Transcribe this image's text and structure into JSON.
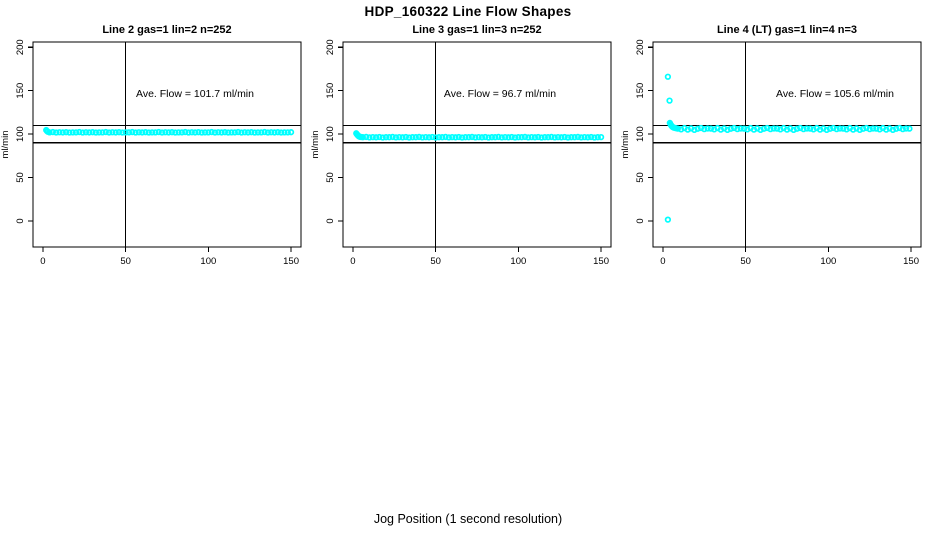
{
  "page_title": "HDP_160322  Line Flow Shapes",
  "bottom_caption": "Jog Position (1 second resolution)",
  "marker_color": "#00FFFF",
  "axis_color": "#000000",
  "chart_data": [
    {
      "type": "scatter",
      "title": "Line 2 gas=1 lin=2 n=252",
      "ylabel": "ml/min",
      "annotation": "Ave. Flow =  101.7  ml/min",
      "ave_flow_ml_min": 101.7,
      "n": 252,
      "x_ticks": [
        0,
        50,
        100,
        150
      ],
      "y_ticks": [
        0,
        50,
        100,
        150,
        200
      ],
      "xlim": [
        -6,
        156
      ],
      "ylim": [
        -30,
        206
      ],
      "ref_hlines": [
        90,
        110
      ],
      "ref_vlines": [
        50
      ],
      "marker": "open-circle",
      "points": [
        [
          2,
          104.6
        ],
        [
          2.5,
          103.4
        ],
        [
          3,
          102.7
        ],
        [
          4,
          102
        ],
        [
          6,
          102.3
        ],
        [
          8,
          101.8
        ],
        [
          10,
          102.1
        ],
        [
          12,
          101.9
        ],
        [
          14,
          102.2
        ],
        [
          16,
          101.8
        ],
        [
          18,
          102
        ],
        [
          20,
          102
        ],
        [
          22,
          102.3
        ],
        [
          24,
          101.8
        ],
        [
          26,
          102.1
        ],
        [
          28,
          101.9
        ],
        [
          30,
          102.2
        ],
        [
          32,
          101.8
        ],
        [
          34,
          102
        ],
        [
          36,
          102
        ],
        [
          38,
          102.3
        ],
        [
          40,
          101.8
        ],
        [
          42,
          102.1
        ],
        [
          44,
          101.9
        ],
        [
          46,
          102.2
        ],
        [
          48,
          101.8
        ],
        [
          50,
          102
        ],
        [
          52,
          102
        ],
        [
          54,
          102.3
        ],
        [
          56,
          101.8
        ],
        [
          58,
          102.1
        ],
        [
          60,
          101.9
        ],
        [
          62,
          102.2
        ],
        [
          64,
          101.8
        ],
        [
          66,
          102
        ],
        [
          68,
          102
        ],
        [
          70,
          102.3
        ],
        [
          72,
          101.8
        ],
        [
          74,
          102.1
        ],
        [
          76,
          101.9
        ],
        [
          78,
          102.2
        ],
        [
          80,
          101.8
        ],
        [
          82,
          102
        ],
        [
          84,
          102
        ],
        [
          86,
          102.3
        ],
        [
          88,
          101.8
        ],
        [
          90,
          102.1
        ],
        [
          92,
          101.9
        ],
        [
          94,
          102.2
        ],
        [
          96,
          101.8
        ],
        [
          98,
          102
        ],
        [
          100,
          102
        ],
        [
          102,
          102.3
        ],
        [
          104,
          101.8
        ],
        [
          106,
          102.1
        ],
        [
          108,
          101.9
        ],
        [
          110,
          102.2
        ],
        [
          112,
          101.8
        ],
        [
          114,
          102
        ],
        [
          116,
          102
        ],
        [
          118,
          102.3
        ],
        [
          120,
          101.8
        ],
        [
          122,
          102.1
        ],
        [
          124,
          101.9
        ],
        [
          126,
          102.2
        ],
        [
          128,
          101.8
        ],
        [
          130,
          102
        ],
        [
          132,
          102
        ],
        [
          134,
          102.3
        ],
        [
          136,
          101.8
        ],
        [
          138,
          102.1
        ],
        [
          140,
          101.9
        ],
        [
          142,
          102.2
        ],
        [
          144,
          101.8
        ],
        [
          146,
          102
        ],
        [
          148,
          102
        ],
        [
          150,
          102.2
        ]
      ]
    },
    {
      "type": "scatter",
      "title": "Line 3 gas=1 lin=3 n=252",
      "ylabel": "ml/min",
      "annotation": "Ave. Flow =  96.7  ml/min",
      "ave_flow_ml_min": 96.7,
      "n": 252,
      "x_ticks": [
        0,
        50,
        100,
        150
      ],
      "y_ticks": [
        0,
        50,
        100,
        150,
        200
      ],
      "xlim": [
        -6,
        156
      ],
      "ylim": [
        -30,
        206
      ],
      "ref_hlines": [
        90,
        110
      ],
      "ref_vlines": [
        50
      ],
      "marker": "open-circle",
      "points": [
        [
          2,
          100.9
        ],
        [
          2.4,
          99.8
        ],
        [
          2.8,
          98.9
        ],
        [
          3.2,
          98.1
        ],
        [
          3.6,
          97.5
        ],
        [
          4,
          97.1
        ],
        [
          4.5,
          96.8
        ],
        [
          5,
          96.6
        ],
        [
          6,
          96.4
        ],
        [
          8,
          96.7
        ],
        [
          10,
          96.2
        ],
        [
          12,
          96.5
        ],
        [
          14,
          96.3
        ],
        [
          16,
          96.6
        ],
        [
          18,
          96.1
        ],
        [
          20,
          96.4
        ],
        [
          22,
          96.4
        ],
        [
          24,
          96.7
        ],
        [
          26,
          96.2
        ],
        [
          28,
          96.5
        ],
        [
          30,
          96.3
        ],
        [
          32,
          96.6
        ],
        [
          34,
          96.1
        ],
        [
          36,
          96.4
        ],
        [
          38,
          96.4
        ],
        [
          40,
          96.7
        ],
        [
          42,
          96.2
        ],
        [
          44,
          96.5
        ],
        [
          46,
          96.3
        ],
        [
          48,
          96.6
        ],
        [
          50,
          96.1
        ],
        [
          52,
          96.4
        ],
        [
          54,
          96.4
        ],
        [
          56,
          96.7
        ],
        [
          58,
          96.2
        ],
        [
          60,
          96.5
        ],
        [
          62,
          96.3
        ],
        [
          64,
          96.6
        ],
        [
          66,
          96.1
        ],
        [
          68,
          96.4
        ],
        [
          70,
          96.4
        ],
        [
          72,
          96.7
        ],
        [
          74,
          96.2
        ],
        [
          76,
          96.5
        ],
        [
          78,
          96.3
        ],
        [
          80,
          96.6
        ],
        [
          82,
          96.1
        ],
        [
          84,
          96.4
        ],
        [
          86,
          96.4
        ],
        [
          88,
          96.7
        ],
        [
          90,
          96.2
        ],
        [
          92,
          96.5
        ],
        [
          94,
          96.3
        ],
        [
          96,
          96.6
        ],
        [
          98,
          96.1
        ],
        [
          100,
          96.4
        ],
        [
          102,
          96.4
        ],
        [
          104,
          96.7
        ],
        [
          106,
          96.2
        ],
        [
          108,
          96.5
        ],
        [
          110,
          96.3
        ],
        [
          112,
          96.6
        ],
        [
          114,
          96.1
        ],
        [
          116,
          96.4
        ],
        [
          118,
          96.4
        ],
        [
          120,
          96.7
        ],
        [
          122,
          96.2
        ],
        [
          124,
          96.5
        ],
        [
          126,
          96.3
        ],
        [
          128,
          96.6
        ],
        [
          130,
          96.1
        ],
        [
          132,
          96.4
        ],
        [
          134,
          96.4
        ],
        [
          136,
          96.7
        ],
        [
          138,
          96.2
        ],
        [
          140,
          96.5
        ],
        [
          142,
          96.3
        ],
        [
          144,
          96.6
        ],
        [
          146,
          96.1
        ],
        [
          148,
          96.4
        ],
        [
          150,
          96.5
        ]
      ]
    },
    {
      "type": "scatter",
      "title": "Line 4 (LT) gas=1 lin=4 n=3",
      "ylabel": "ml/min",
      "annotation": "Ave. Flow =  105.6  ml/min",
      "ave_flow_ml_min": 105.6,
      "n": 3,
      "x_ticks": [
        0,
        50,
        100,
        150
      ],
      "y_ticks": [
        0,
        50,
        100,
        150,
        200
      ],
      "xlim": [
        -6,
        156
      ],
      "ylim": [
        -30,
        206
      ],
      "ref_hlines": [
        90,
        110
      ],
      "ref_vlines": [
        50
      ],
      "marker": "open-circle",
      "points": [
        [
          3,
          166
        ],
        [
          3,
          1.5
        ],
        [
          4,
          138.5
        ],
        [
          4.2,
          112.8
        ],
        [
          4.6,
          111.2
        ],
        [
          5,
          110
        ],
        [
          5.4,
          109
        ],
        [
          5.8,
          108.2
        ],
        [
          6.4,
          107.6
        ],
        [
          7,
          107.2
        ],
        [
          7.8,
          106.8
        ],
        [
          9,
          106.3
        ],
        [
          11,
          105.4
        ],
        [
          13,
          106.9
        ],
        [
          15,
          105.1
        ],
        [
          17,
          106.5
        ],
        [
          19,
          104.8
        ],
        [
          21,
          106.1
        ],
        [
          23,
          107
        ],
        [
          25,
          105.7
        ],
        [
          27,
          106.4
        ],
        [
          29,
          106.3
        ],
        [
          31,
          105.4
        ],
        [
          33,
          106.9
        ],
        [
          35,
          105.1
        ],
        [
          37,
          106.5
        ],
        [
          39,
          104.8
        ],
        [
          41,
          106.1
        ],
        [
          43,
          107
        ],
        [
          45,
          105.7
        ],
        [
          47,
          106.4
        ],
        [
          49,
          106.3
        ],
        [
          51,
          105.4
        ],
        [
          53,
          106.9
        ],
        [
          55,
          105.1
        ],
        [
          57,
          106.5
        ],
        [
          59,
          104.8
        ],
        [
          61,
          106.1
        ],
        [
          63,
          107
        ],
        [
          65,
          105.7
        ],
        [
          67,
          106.4
        ],
        [
          69,
          106.3
        ],
        [
          71,
          105.4
        ],
        [
          73,
          106.9
        ],
        [
          75,
          105.1
        ],
        [
          77,
          106.5
        ],
        [
          79,
          104.8
        ],
        [
          81,
          106.1
        ],
        [
          83,
          107
        ],
        [
          85,
          105.7
        ],
        [
          87,
          106.4
        ],
        [
          89,
          106.3
        ],
        [
          91,
          105.4
        ],
        [
          93,
          106.9
        ],
        [
          95,
          105.1
        ],
        [
          97,
          106.5
        ],
        [
          99,
          104.8
        ],
        [
          101,
          106.1
        ],
        [
          103,
          107
        ],
        [
          105,
          105.7
        ],
        [
          107,
          106.4
        ],
        [
          109,
          106.3
        ],
        [
          111,
          105.4
        ],
        [
          113,
          106.9
        ],
        [
          115,
          105.1
        ],
        [
          117,
          106.5
        ],
        [
          119,
          104.8
        ],
        [
          121,
          106.1
        ],
        [
          123,
          107
        ],
        [
          125,
          105.7
        ],
        [
          127,
          106.4
        ],
        [
          129,
          106.3
        ],
        [
          131,
          105.4
        ],
        [
          133,
          106.9
        ],
        [
          135,
          105.1
        ],
        [
          137,
          106.5
        ],
        [
          139,
          104.8
        ],
        [
          141,
          106.1
        ],
        [
          143,
          107
        ],
        [
          145,
          105.7
        ],
        [
          147,
          106.4
        ],
        [
          149,
          106.3
        ]
      ]
    }
  ]
}
